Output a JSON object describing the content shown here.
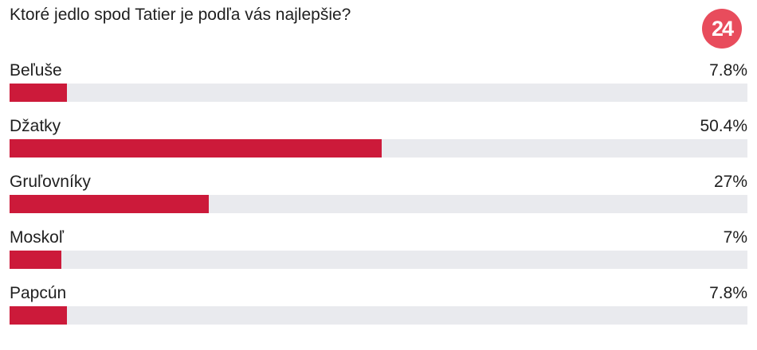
{
  "poll": {
    "question": "Ktoré jedlo spod Tatier je podľa vás najlepšie?",
    "logo_text": "24",
    "logo_color": "#e84c5c",
    "bar_color": "#cc1a3a",
    "track_color": "#e9eaee",
    "options": [
      {
        "label": "Beľuše",
        "percent_text": "7.8%",
        "value": 7.8
      },
      {
        "label": "Džatky",
        "percent_text": "50.4%",
        "value": 50.4
      },
      {
        "label": "Gruľovníky",
        "percent_text": "27%",
        "value": 27
      },
      {
        "label": "Moskoľ",
        "percent_text": "7%",
        "value": 7
      },
      {
        "label": "Papcún",
        "percent_text": "7.8%",
        "value": 7.8
      }
    ]
  }
}
